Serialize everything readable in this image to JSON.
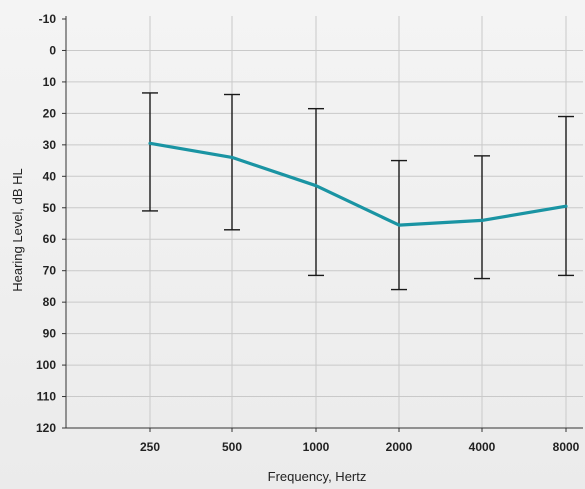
{
  "chart_data": {
    "type": "line",
    "title": "",
    "xlabel": "Frequency, Hertz",
    "ylabel": "Hearing Level, dB HL",
    "categories": [
      "250",
      "500",
      "1000",
      "2000",
      "4000",
      "8000"
    ],
    "x_tick_labels": [
      "250",
      "500",
      "1000",
      "2000",
      "4000",
      "8000"
    ],
    "y_tick_labels": [
      "-10",
      "0",
      "10",
      "20",
      "30",
      "40",
      "50",
      "60",
      "70",
      "80",
      "90",
      "100",
      "110",
      "120"
    ],
    "ylim": [
      -10,
      120
    ],
    "y_inverted": true,
    "grid": true,
    "legend": "none",
    "series": [
      {
        "values": [
          29.5,
          34,
          43,
          55.5,
          54,
          49.5
        ],
        "error_low": [
          13.5,
          14,
          18.5,
          35,
          33.5,
          21
        ],
        "error_high": [
          51,
          57,
          71.5,
          76,
          72.5,
          71.5
        ],
        "color": "#1a94a3"
      }
    ],
    "colors": {
      "line": "#1a94a3",
      "error_bars": "#1a1a1a",
      "grid": "#c9c9c9",
      "background": "#efefef"
    }
  }
}
